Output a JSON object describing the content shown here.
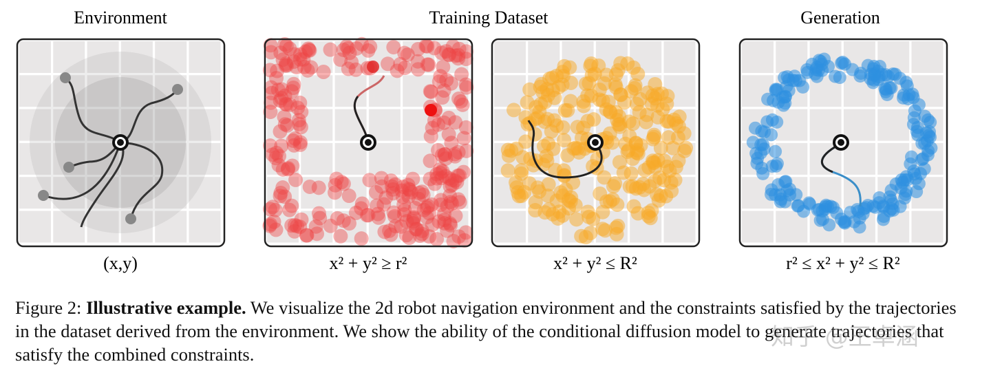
{
  "panels": [
    {
      "title": "Environment",
      "label": "(x,y)"
    },
    {
      "title": "Training Dataset",
      "label": "x² + y² ≥ r²"
    },
    {
      "title": null,
      "label": "x² + y² ≤ R²"
    },
    {
      "title": "Generation",
      "label": "r² ≤ x² + y² ≤ R²"
    }
  ],
  "caption": {
    "figure": "Figure 2:",
    "heading": "Illustrative example.",
    "text": "We visualize the 2d robot navigation environment and the constraints satisfied by the trajectories in the dataset derived from the environment. We show the ability of the conditional diffusion model to generate trajectories that satisfy the combined constraints."
  },
  "watermark": "知乎 @王卓涵"
}
